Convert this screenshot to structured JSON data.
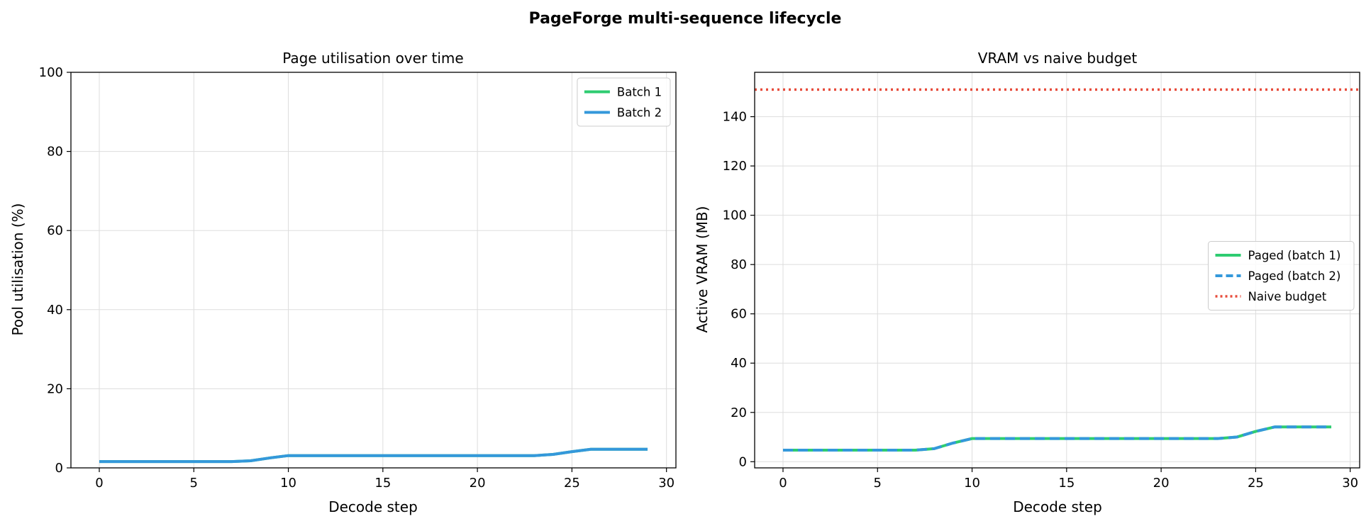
{
  "figure": {
    "suptitle": "PageForge multi-sequence lifecycle"
  },
  "colors": {
    "batch1": "#2ecc71",
    "batch2": "#3498db",
    "naive": "#e74c3c",
    "grid": "#dddddd",
    "axes": "#000000"
  },
  "chart_data": [
    {
      "type": "line",
      "title": "Page utilisation over time",
      "xlabel": "Decode step",
      "ylabel": "Pool utilisation (%)",
      "xlim": [
        -1.5,
        30.5
      ],
      "ylim": [
        0,
        100
      ],
      "xticks": [
        0,
        5,
        10,
        15,
        20,
        25,
        30
      ],
      "yticks": [
        0,
        20,
        40,
        60,
        80,
        100
      ],
      "grid": true,
      "legend_position": "upper-right",
      "x": [
        0,
        1,
        2,
        3,
        4,
        5,
        6,
        7,
        8,
        9,
        10,
        11,
        12,
        13,
        14,
        15,
        16,
        17,
        18,
        19,
        20,
        21,
        22,
        23,
        24,
        25,
        26,
        27,
        28,
        29
      ],
      "series": [
        {
          "name": "Batch 1",
          "color_key": "batch1",
          "style": "solid",
          "values": [
            1.6,
            1.6,
            1.6,
            1.6,
            1.6,
            1.6,
            1.6,
            1.6,
            1.8,
            2.5,
            3.1,
            3.1,
            3.1,
            3.1,
            3.1,
            3.1,
            3.1,
            3.1,
            3.1,
            3.1,
            3.1,
            3.1,
            3.1,
            3.1,
            3.4,
            4.1,
            4.7,
            4.7,
            4.7,
            4.7
          ]
        },
        {
          "name": "Batch 2",
          "color_key": "batch2",
          "style": "solid",
          "values": [
            1.6,
            1.6,
            1.6,
            1.6,
            1.6,
            1.6,
            1.6,
            1.6,
            1.8,
            2.5,
            3.1,
            3.1,
            3.1,
            3.1,
            3.1,
            3.1,
            3.1,
            3.1,
            3.1,
            3.1,
            3.1,
            3.1,
            3.1,
            3.1,
            3.4,
            4.1,
            4.7,
            4.7,
            4.7,
            4.7
          ]
        }
      ]
    },
    {
      "type": "line",
      "title": "VRAM vs naive budget",
      "xlabel": "Decode step",
      "ylabel": "Active VRAM (MB)",
      "xlim": [
        -1.5,
        30.5
      ],
      "ylim": [
        -2.5,
        158
      ],
      "xticks": [
        0,
        5,
        10,
        15,
        20,
        25,
        30
      ],
      "yticks": [
        0,
        20,
        40,
        60,
        80,
        100,
        120,
        140
      ],
      "grid": true,
      "legend_position": "center-right",
      "x": [
        0,
        1,
        2,
        3,
        4,
        5,
        6,
        7,
        8,
        9,
        10,
        11,
        12,
        13,
        14,
        15,
        16,
        17,
        18,
        19,
        20,
        21,
        22,
        23,
        24,
        25,
        26,
        27,
        28,
        29
      ],
      "series": [
        {
          "name": "Paged (batch 1)",
          "color_key": "batch1",
          "style": "solid",
          "values": [
            4.7,
            4.7,
            4.7,
            4.7,
            4.7,
            4.7,
            4.7,
            4.7,
            5.3,
            7.6,
            9.4,
            9.4,
            9.4,
            9.4,
            9.4,
            9.4,
            9.4,
            9.4,
            9.4,
            9.4,
            9.4,
            9.4,
            9.4,
            9.4,
            10.0,
            12.3,
            14.1,
            14.1,
            14.1,
            14.1
          ]
        },
        {
          "name": "Paged (batch 2)",
          "color_key": "batch2",
          "style": "dashed",
          "values": [
            4.7,
            4.7,
            4.7,
            4.7,
            4.7,
            4.7,
            4.7,
            4.7,
            5.3,
            7.6,
            9.4,
            9.4,
            9.4,
            9.4,
            9.4,
            9.4,
            9.4,
            9.4,
            9.4,
            9.4,
            9.4,
            9.4,
            9.4,
            9.4,
            10.0,
            12.3,
            14.1,
            14.1,
            14.1,
            14.1
          ]
        },
        {
          "name": "Naive budget",
          "color_key": "naive",
          "style": "dotted",
          "hline": 151
        }
      ]
    }
  ]
}
